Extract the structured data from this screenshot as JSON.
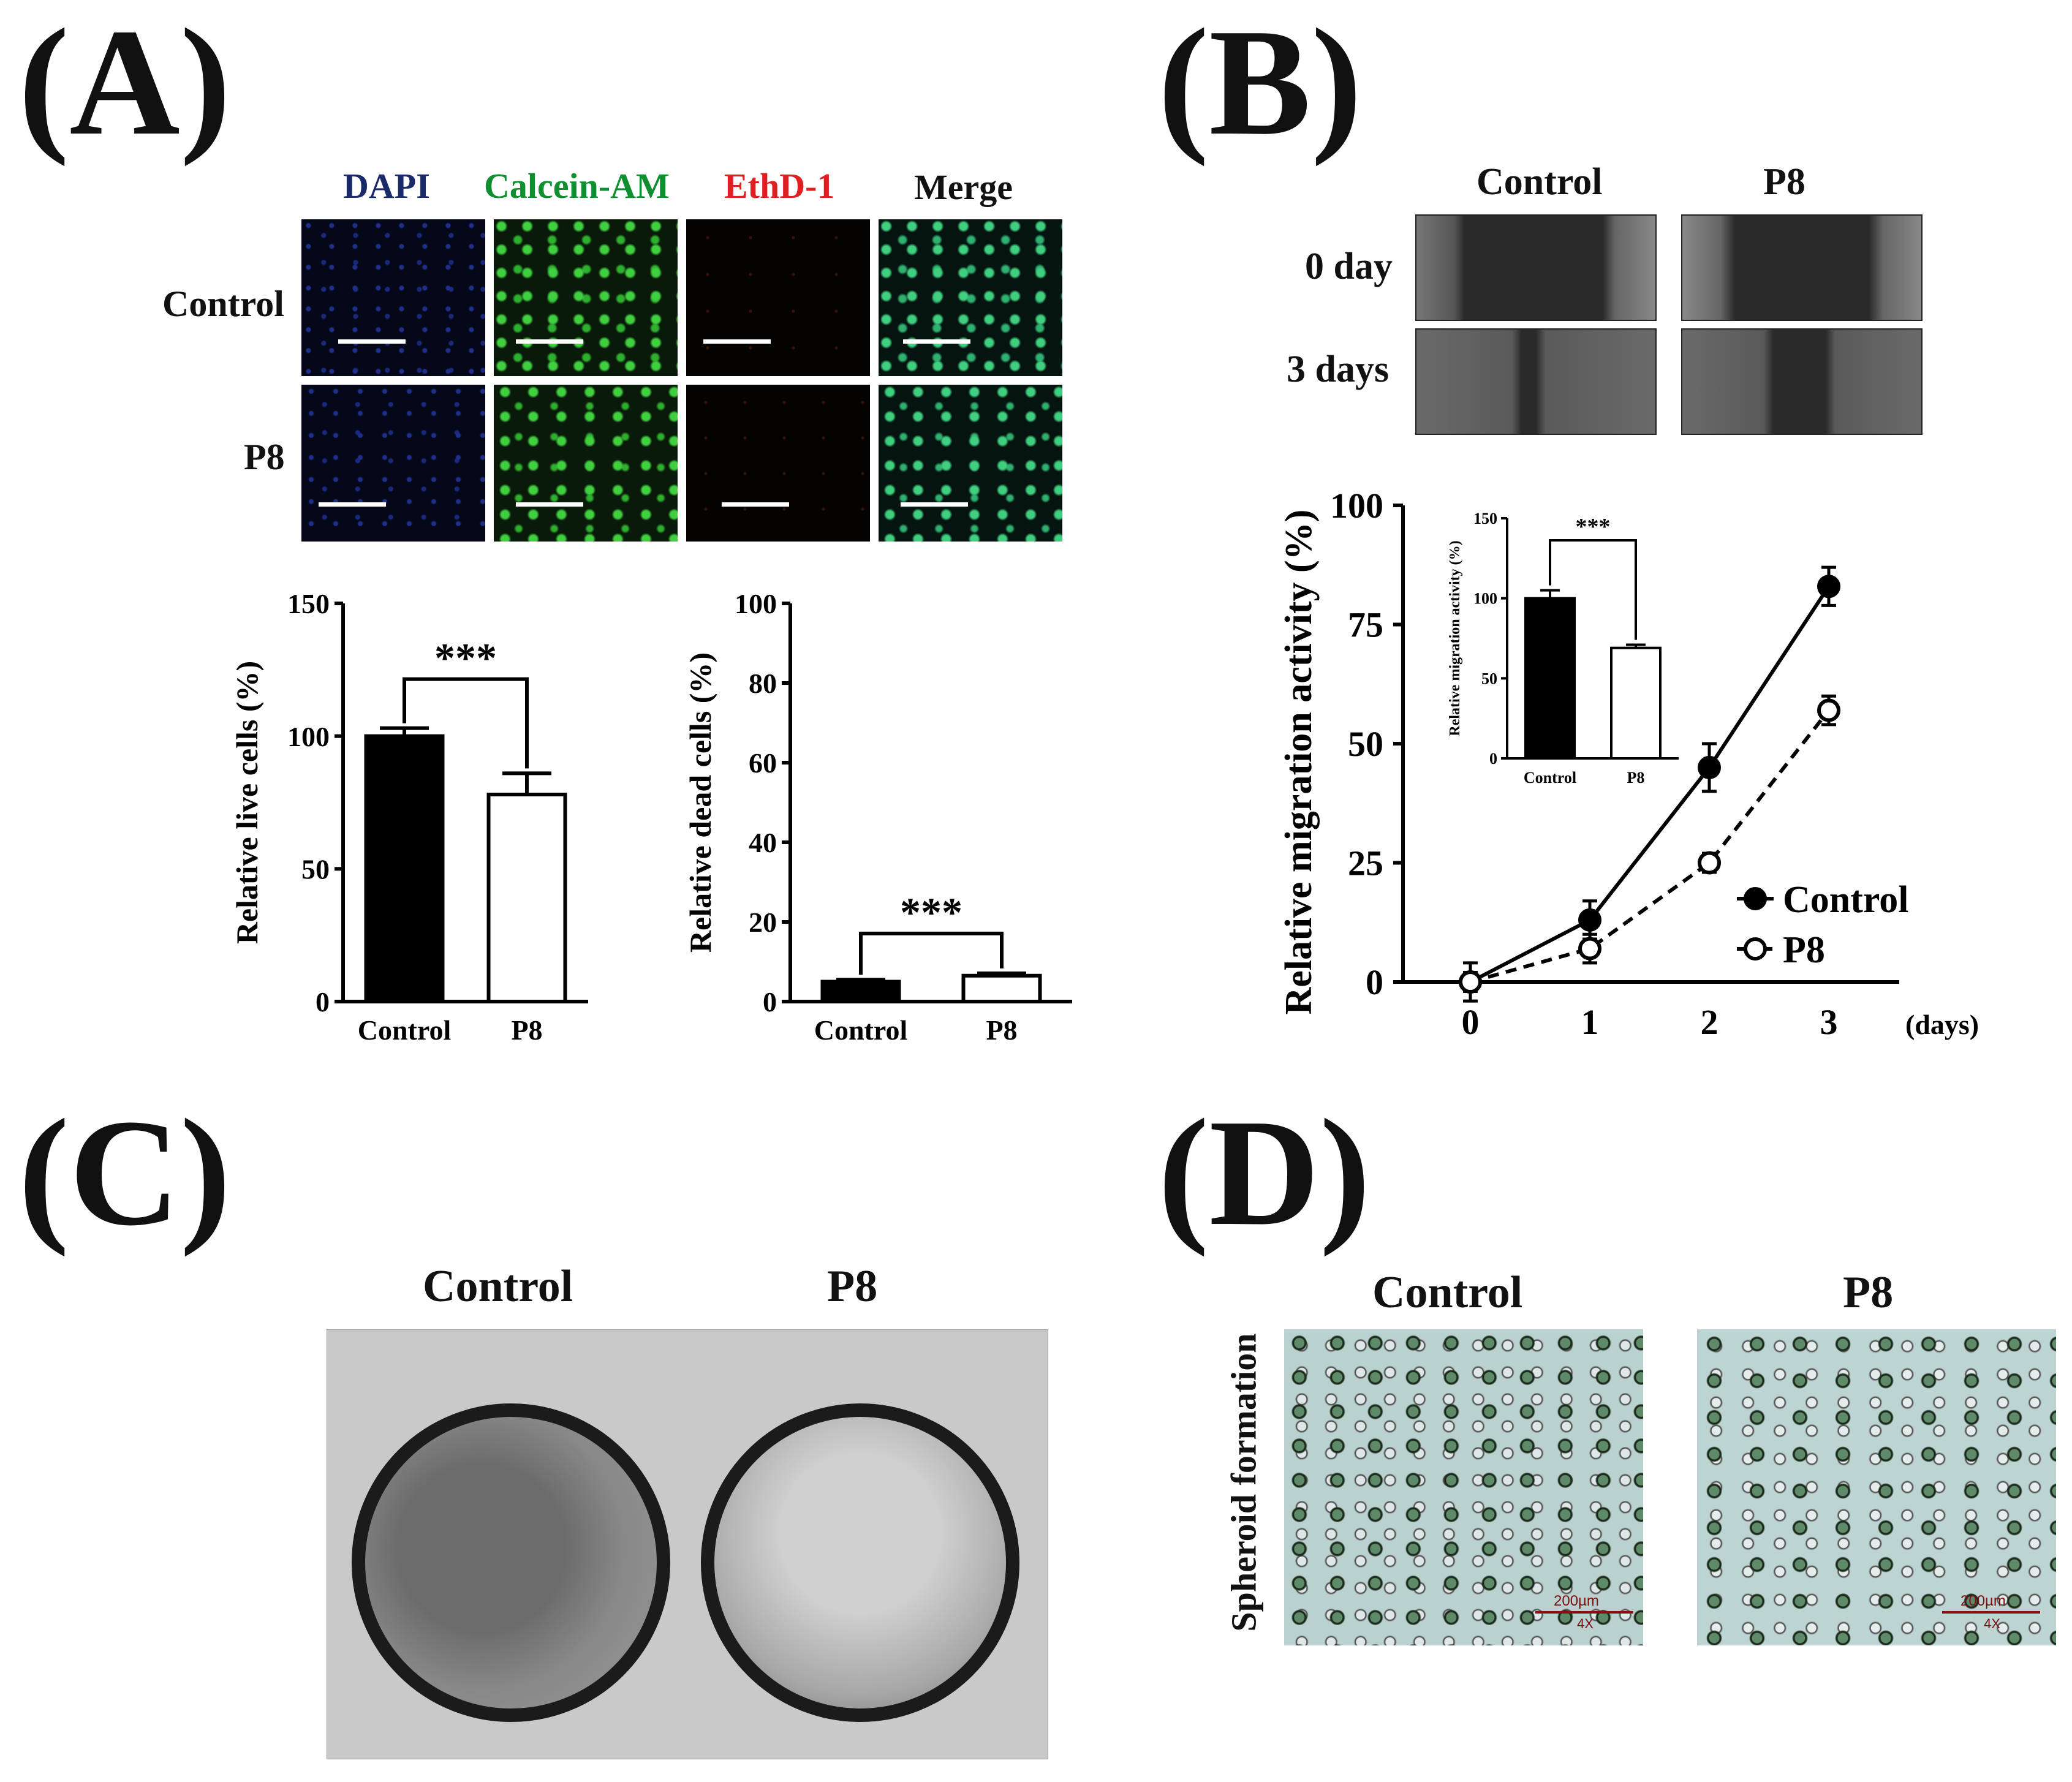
{
  "panels": {
    "a": "(A)",
    "b": "(B)",
    "c": "(C)",
    "d": "(D)"
  },
  "panel_a": {
    "stains": [
      {
        "label": "DAPI",
        "color": "#1a2a6a"
      },
      {
        "label": "Calcein-AM",
        "color": "#0f8f2f"
      },
      {
        "label": "EthD-1",
        "color": "#e02020"
      },
      {
        "label": "Merge",
        "color": "#111111"
      }
    ],
    "rows": [
      "Control",
      "P8"
    ]
  },
  "panel_b": {
    "columns": [
      "Control",
      "P8"
    ],
    "rows": [
      "0 day",
      "3 days"
    ]
  },
  "panel_c": {
    "columns": [
      "Control",
      "P8"
    ]
  },
  "panel_d": {
    "columns": [
      "Control",
      "P8"
    ],
    "row_label": "Spheroid formation",
    "scale_text": "200µm",
    "mag_text": "4X"
  },
  "chart_data": [
    {
      "id": "live-cells",
      "type": "bar",
      "categories": [
        "Control",
        "P8"
      ],
      "values": [
        100,
        78
      ],
      "errors": [
        3,
        8
      ],
      "fills": [
        "#000000",
        "#ffffff"
      ],
      "ylabel": "Relative live cells (%)",
      "ylim": [
        0,
        150
      ],
      "yticks": [
        0,
        50,
        100,
        150
      ],
      "significance": "***"
    },
    {
      "id": "dead-cells",
      "type": "bar",
      "categories": [
        "Control",
        "P8"
      ],
      "values": [
        5,
        6.5
      ],
      "errors": [
        0.5,
        0.6
      ],
      "fills": [
        "#000000",
        "#ffffff"
      ],
      "ylabel": "Relative dead cells (%)",
      "ylim": [
        0,
        100
      ],
      "yticks": [
        0,
        20,
        40,
        60,
        80,
        100
      ],
      "significance": "***"
    },
    {
      "id": "migration",
      "type": "line",
      "x": [
        0,
        1,
        2,
        3
      ],
      "xlabel": "(days)",
      "xticks": [
        "0",
        "1",
        "2",
        "3"
      ],
      "ylabel": "Relative migration activity (%)",
      "ylim": [
        0,
        100
      ],
      "yticks": [
        0,
        25,
        50,
        75,
        100
      ],
      "legend_position": "bottom-right",
      "series": [
        {
          "name": "Control",
          "values": [
            0,
            13,
            45,
            83
          ],
          "errors": [
            4,
            4,
            5,
            4
          ],
          "marker": "filled",
          "dash": "solid"
        },
        {
          "name": "P8",
          "values": [
            0,
            7,
            25,
            57
          ],
          "errors": [
            2,
            3,
            2,
            3
          ],
          "marker": "open",
          "dash": "dashed"
        }
      ]
    },
    {
      "id": "migration-inset",
      "type": "bar",
      "categories": [
        "Control",
        "P8"
      ],
      "values": [
        100,
        69
      ],
      "errors": [
        5,
        2
      ],
      "fills": [
        "#000000",
        "#ffffff"
      ],
      "ylabel": "Relative migration activity (%)",
      "ylim": [
        0,
        150
      ],
      "yticks": [
        0,
        50,
        100,
        150
      ],
      "significance": "***"
    }
  ]
}
